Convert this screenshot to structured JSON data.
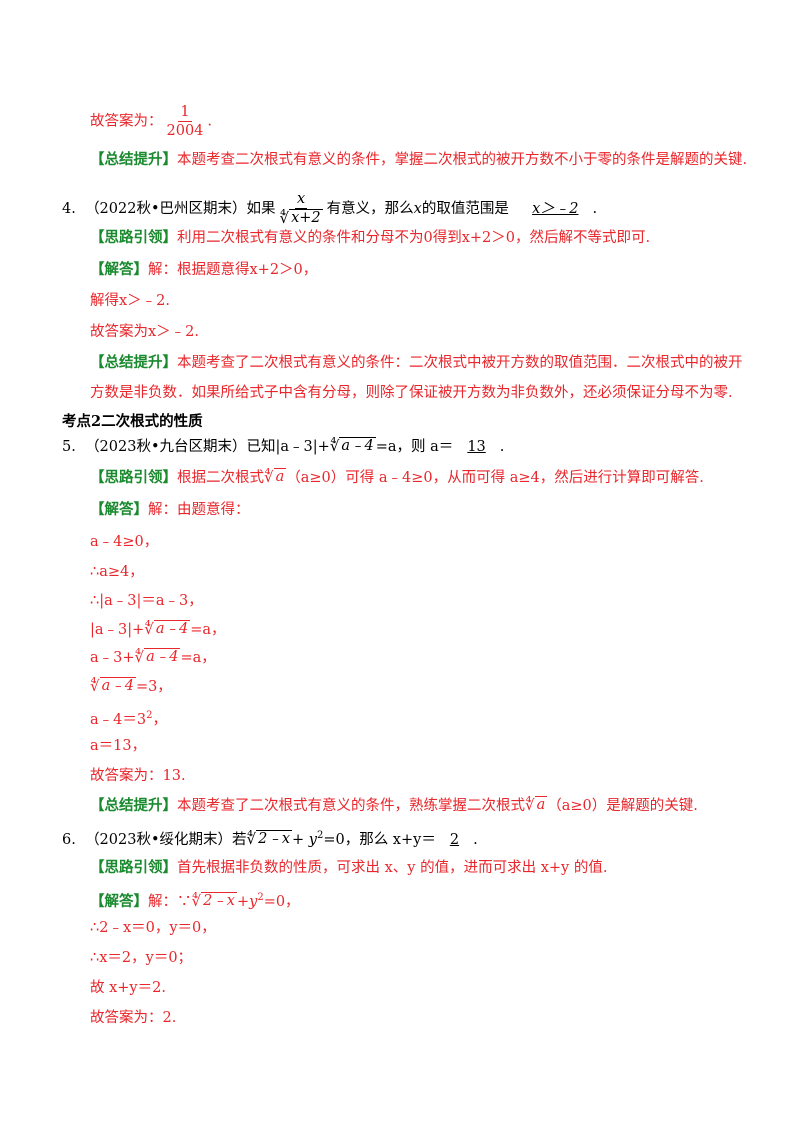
{
  "answer_prev": {
    "prefix": "故答案为：",
    "num": "1",
    "den": "2004",
    "suffix": "."
  },
  "summary_prev": {
    "tag": "【总结提升】",
    "text": "本题考查二次根式有意义的条件，掌握二次根式的被开方数不小于零的条件是解题的关键."
  },
  "q4": {
    "number": "4.",
    "source": "（2022秋•巴州区期末）如果",
    "frac_num": "x",
    "frac_den_radical": "x+2",
    "text_mid": "有意义，那么",
    "var": "x",
    "text_end": "的取值范围是",
    "answer": "x＞﹣2",
    "end": ".",
    "hint_tag": "【思路引领】",
    "hint": "利用二次根式有意义的条件和分母不为0得到x+2＞0，然后解不等式即可.",
    "sol_tag": "【解答】",
    "sol1": "解：根据题意得x+2＞0，",
    "sol2": "解得x＞﹣2.",
    "sol3": "故答案为x＞﹣2.",
    "sum_tag": "【总结提升】",
    "sum1": "本题考查了二次根式有意义的条件：二次根式中被开方数的取值范围．二次根式中的被开",
    "sum2": "方数是非负数．如果所给式子中含有分母，则除了保证被开方数为非负数外，还必须保证分母不为零."
  },
  "section2": {
    "title": "考点2二次根式的性质"
  },
  "q5": {
    "number": "5.",
    "source": "（2023秋•九台区期末）已知|a﹣3|+",
    "rad": "a﹣4",
    "eq": "=a，则 a＝",
    "answer": "13",
    "end": ".",
    "hint_tag": "【思路引领】",
    "hint_a": "根据二次根式",
    "hint_rad": "a",
    "hint_b": "（a≥0）可得 a﹣4≥0，从而可得 a≥4，然后进行计算即可解答.",
    "sol_tag": "【解答】",
    "sol0": "解：由题意得：",
    "s1": "a﹣4≥0，",
    "s2": "∴a≥4，",
    "s3": "∴|a﹣3|＝a﹣3，",
    "s4a": "|a﹣3|+",
    "s4rad": "a﹣4",
    "s4b": "=a，",
    "s5a": "a﹣3+",
    "s5rad": "a﹣4",
    "s5b": "=a，",
    "s6rad": "a﹣4",
    "s6b": "=3，",
    "s7": "a﹣4＝3",
    "s7sup": "2",
    "s7end": "，",
    "s8": "a＝13，",
    "s9": "故答案为：13.",
    "sum_tag": "【总结提升】",
    "sum_a": "本题考查了二次根式有意义的条件，熟练掌握二次根式",
    "sum_rad": "a",
    "sum_b": "（a≥0）是解题的关键."
  },
  "q6": {
    "number": "6.",
    "source": "（2023秋•绥化期末）若",
    "rad": "2﹣x",
    "mid": "+ y",
    "sup": "2",
    "eq": "=0，那么 x+y＝",
    "answer": "2",
    "end": ".",
    "hint_tag": "【思路引领】",
    "hint": "首先根据非负数的性质，可求出 x、y 的值，进而可求出 x+y 的值.",
    "sol_tag": "【解答】",
    "sol_a": "解：∵",
    "sol_rad": "2﹣x",
    "sol_b": "+y",
    "sol_sup": "2",
    "sol_c": "=0，",
    "s1": "∴2﹣x＝0，y＝0，",
    "s2": "∴x＝2，y＝0；",
    "s3": "故 x+y＝2.",
    "s4": "故答案为：2."
  }
}
